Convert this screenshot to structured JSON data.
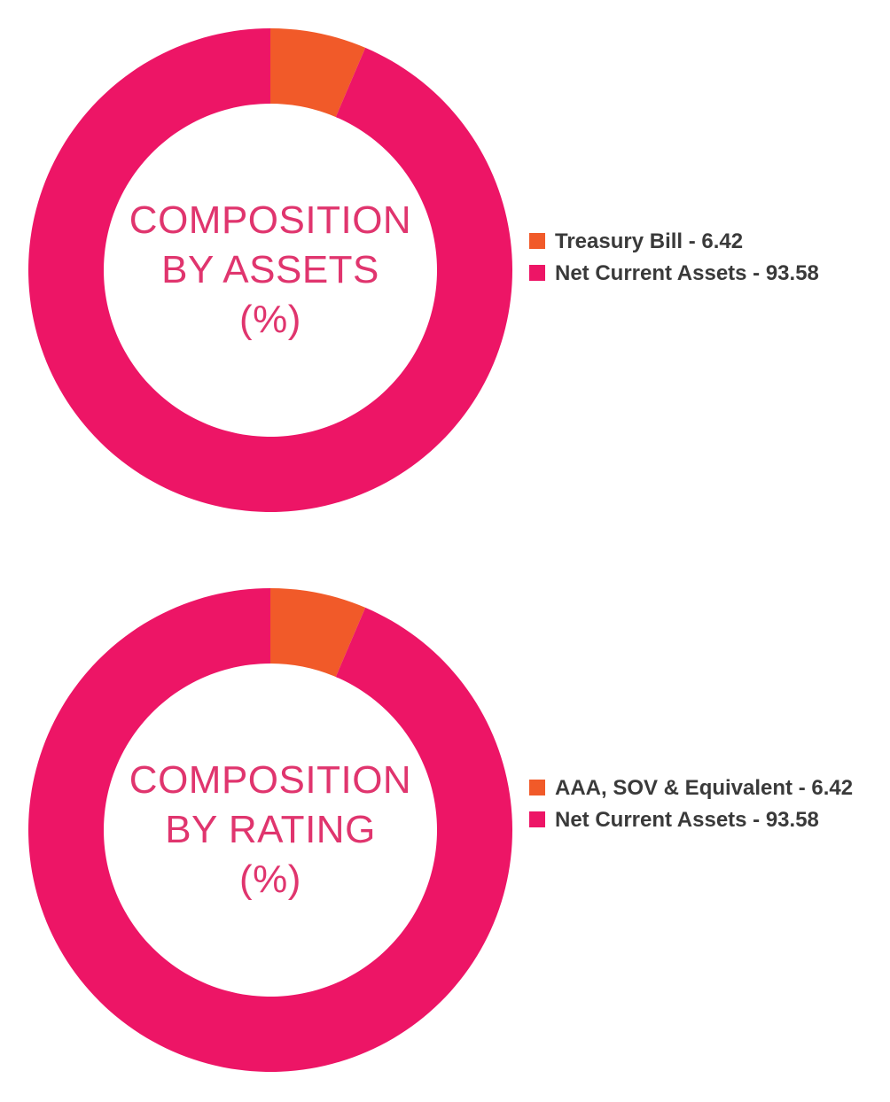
{
  "charts": [
    {
      "center_text": [
        "COMPOSITION",
        "BY ASSETS",
        "(%)"
      ],
      "legend": [
        "Treasury Bill - 6.42",
        "Net Current Assets - 93.58"
      ]
    },
    {
      "center_text": [
        "COMPOSITION",
        "BY RATING",
        "(%)"
      ],
      "legend": [
        "AAA, SOV & Equivalent - 6.42",
        "Net Current Assets - 93.58"
      ]
    }
  ],
  "chart_data": [
    {
      "type": "pie",
      "title": "COMPOSITION BY ASSETS (%)",
      "categories": [
        "Treasury Bill",
        "Net Current Assets"
      ],
      "values": [
        6.42,
        93.58
      ],
      "colors": [
        "#f15a29",
        "#ed1566"
      ],
      "legend_position": "right"
    },
    {
      "type": "pie",
      "title": "COMPOSITION BY RATING (%)",
      "categories": [
        "AAA, SOV & Equivalent",
        "Net Current Assets"
      ],
      "values": [
        6.42,
        93.58
      ],
      "colors": [
        "#f15a29",
        "#ed1566"
      ],
      "legend_position": "right"
    }
  ]
}
